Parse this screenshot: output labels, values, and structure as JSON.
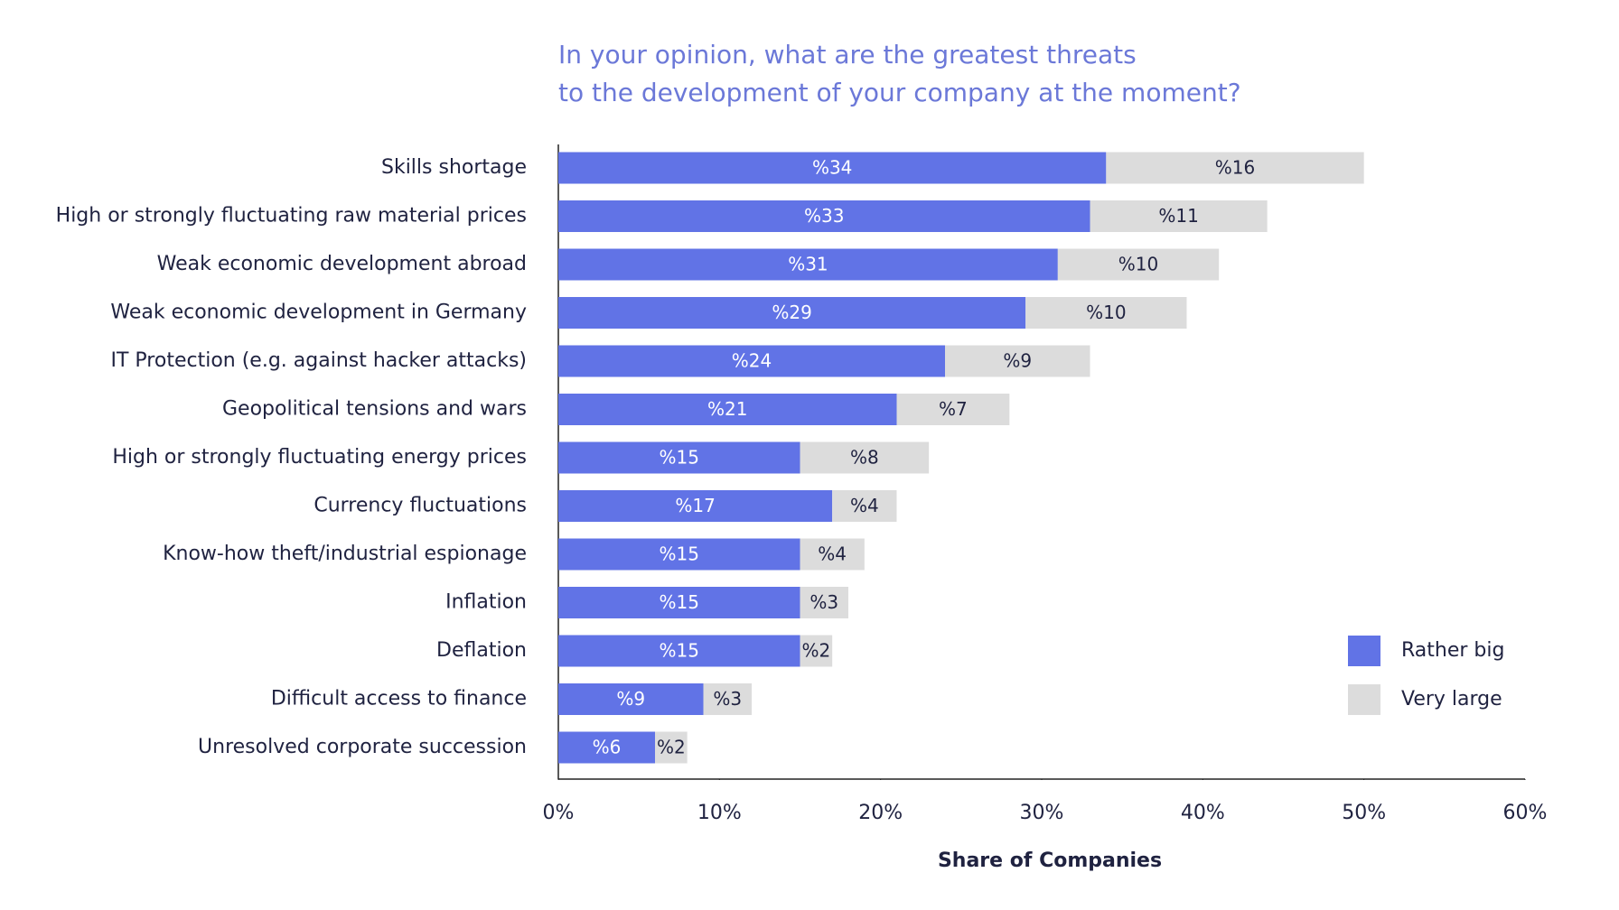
{
  "chart_data": {
    "type": "stacked-barh",
    "title": [
      "In your opinion, what are the greatest threats",
      "to the development of your company at the moment?"
    ],
    "x_label": "Share of Companies",
    "categories": [
      "Skills shortage",
      "High or strongly fluctuating raw material prices",
      "Weak economic development abroad",
      "Weak economic development in Germany",
      "IT Protection (e.g. against hacker attacks)",
      "Geopolitical tensions and wars",
      "High or strongly fluctuating energy prices",
      "Currency fluctuations",
      "Know-how theft/industrial espionage",
      "Inflation",
      "Deflation",
      "Difficult access to finance",
      "Unresolved corporate succession"
    ],
    "series": [
      {
        "name": "Rather big",
        "color": "#6173e6",
        "label_color": "#ffffff",
        "values": [
          34,
          33,
          31,
          29,
          24,
          21,
          15,
          17,
          15,
          15,
          15,
          9,
          6
        ],
        "value_labels": [
          "%34",
          "%33",
          "%31",
          "%29",
          "%24",
          "%21",
          "%15",
          "%17",
          "%15",
          "%15",
          "%15",
          "%9",
          "%6"
        ]
      },
      {
        "name": "Very large",
        "color": "#dcdcdc",
        "label_color": "#1f2240",
        "values": [
          16,
          11,
          10,
          10,
          9,
          7,
          8,
          4,
          4,
          3,
          2,
          3,
          2
        ],
        "value_labels": [
          "%16",
          "%11",
          "%10",
          "%10",
          "%9",
          "%7",
          "%8",
          "%4",
          "%4",
          "%3",
          "%2",
          "%3",
          "%2"
        ]
      }
    ],
    "xlim": [
      0,
      60
    ],
    "xticks": [
      {
        "value": 0,
        "label": "0%"
      },
      {
        "value": 10,
        "label": "10%"
      },
      {
        "value": 20,
        "label": "20%"
      },
      {
        "value": 30,
        "label": "30%"
      },
      {
        "value": 40,
        "label": "40%"
      },
      {
        "value": 50,
        "label": "50%"
      },
      {
        "value": 60,
        "label": "60%"
      }
    ],
    "legend": "lower-right"
  }
}
